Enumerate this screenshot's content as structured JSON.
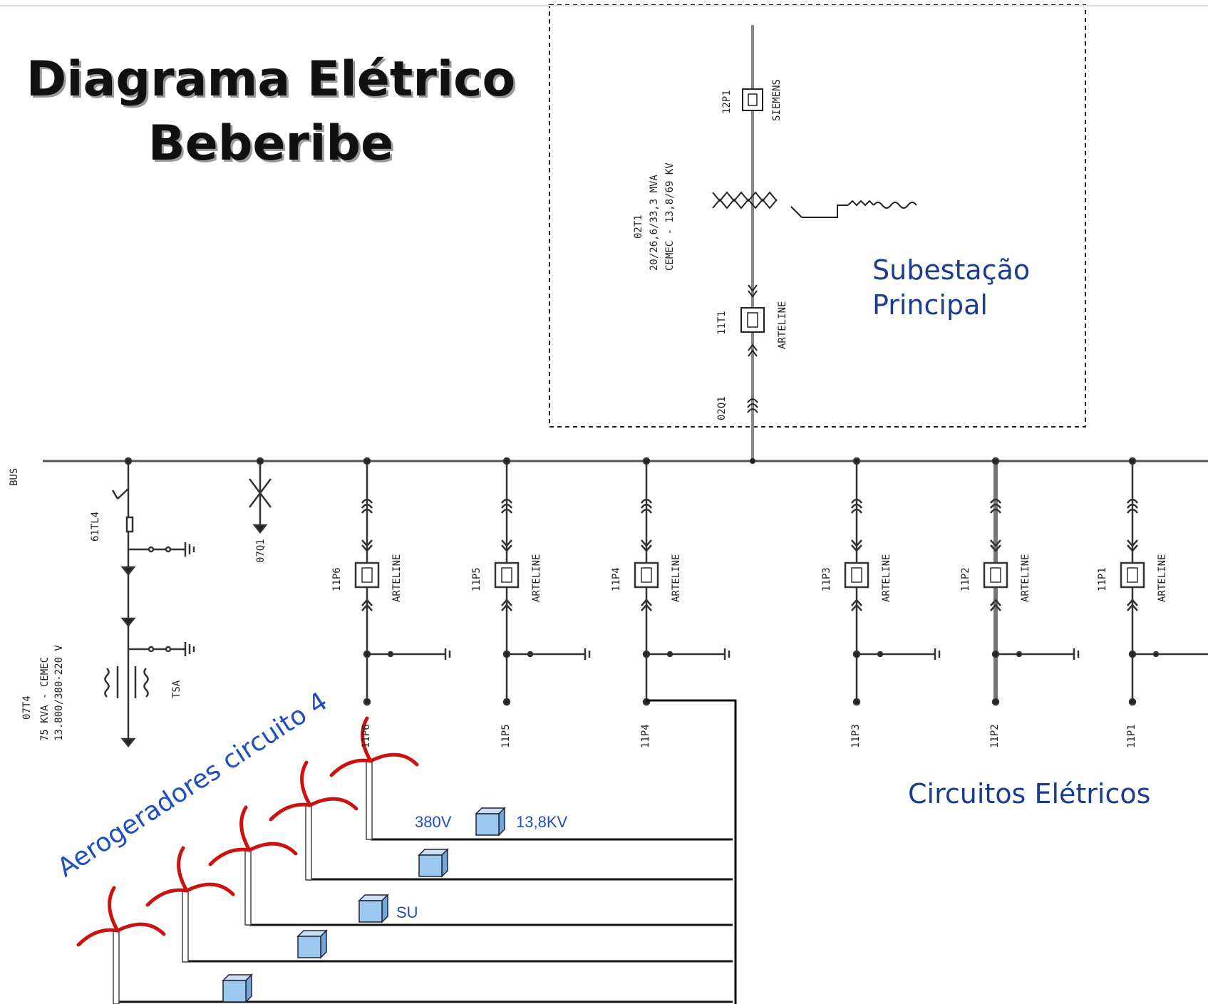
{
  "title": {
    "line1": "Diagrama Elétrico",
    "line2": "Beberibe"
  },
  "substation": {
    "label_line1": "Subestação",
    "label_line2": "Principal",
    "top_breaker": {
      "name": "12P1",
      "maker": "SIEMENS"
    },
    "transformer": {
      "name": "02T1",
      "line1": "20/26,6/33,3 MVA",
      "line2": "CEMEC - 13,8/69 KV"
    },
    "breaker": {
      "name": "11T1",
      "maker": "ARTELINE"
    },
    "switch": "02Q1"
  },
  "bus_label": "BUS",
  "aux": {
    "breaker": "61TL4",
    "transformer_name": "07T4",
    "transformer_line1": "75 KVA - CEMEC",
    "transformer_line2": "13.800/380-220 V",
    "tsa": "TSA",
    "switch": "07Q1"
  },
  "feeders": [
    {
      "breaker": "11P6",
      "maker": "ARTELINE",
      "bottom": "11P6"
    },
    {
      "breaker": "11P5",
      "maker": "ARTELINE",
      "bottom": "11P5"
    },
    {
      "breaker": "11P4",
      "maker": "ARTELINE",
      "bottom": "11P4"
    },
    {
      "breaker": "11P3",
      "maker": "ARTELINE",
      "bottom": "11P3"
    },
    {
      "breaker": "11P2",
      "maker": "ARTELINE",
      "bottom": "11P2"
    },
    {
      "breaker": "11P1",
      "maker": "ARTELINE",
      "bottom": "11P1"
    }
  ],
  "circuits_label": "Circuitos Elétricos",
  "turbines_label": "Aerogeradores circuito 4",
  "voltage_low": "380V",
  "voltage_high": "13,8KV",
  "su_label": "SU",
  "colors": {
    "blade": "#cc1111",
    "box": "#9cc8f0",
    "text_blue": "#1a3c8c",
    "line": "#222222"
  }
}
